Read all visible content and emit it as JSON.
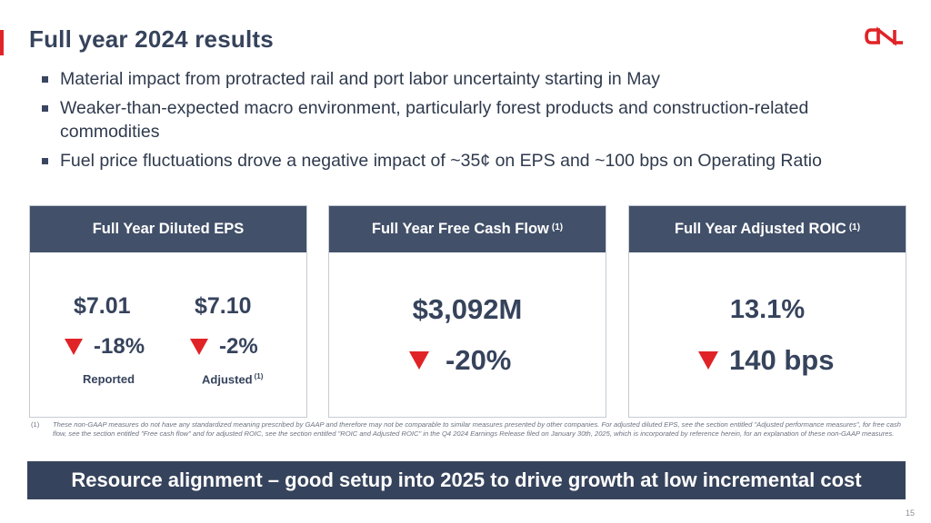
{
  "header": {
    "title": "Full year 2024 results",
    "logo_text": "CN"
  },
  "bullets": [
    "Material impact from protracted rail and port labor uncertainty starting in May",
    "Weaker-than-expected macro environment, particularly forest products and construction-related commodities",
    "Fuel price fluctuations drove a negative impact of ~35¢ on EPS and ~100 bps on Operating Ratio"
  ],
  "cards": {
    "eps": {
      "title": "Full Year Diluted EPS",
      "reported": {
        "value": "$7.01",
        "change": "-18%",
        "label": "Reported"
      },
      "adjusted": {
        "value": "$7.10",
        "change": "-2%",
        "label": "Adjusted",
        "footnote_ref": "(1)"
      }
    },
    "fcf": {
      "title": "Full Year Free Cash Flow",
      "footnote_ref": "(1)",
      "value": "$3,092M",
      "change": "-20%"
    },
    "roic": {
      "title": "Full Year Adjusted ROIC",
      "footnote_ref": "(1)",
      "value": "13.1%",
      "change": "140 bps"
    }
  },
  "footnote": {
    "number": "(1)",
    "text": "These non-GAAP measures do not have any standardized meaning prescribed by GAAP and therefore may not be comparable to similar measures presented by other companies. For adjusted diluted EPS, see the section entitled \"Adjusted performance measures\", for free cash flow, see the section entitled \"Free cash flow\" and for adjusted ROIC, see the section entitled \"ROIC and Adjusted ROIC\" in the Q4 2024 Earnings Release filed on January 30th, 2025, which is incorporated by reference herein, for an explanation of these non-GAAP measures."
  },
  "banner": "Resource alignment – good setup into 2025 to drive growth at low incremental cost",
  "page_number": "15",
  "colors": {
    "accent": "#e02327",
    "navy": "#36435c",
    "header_fill": "#425069"
  },
  "icons": {
    "decrease": "down-triangle-icon"
  }
}
